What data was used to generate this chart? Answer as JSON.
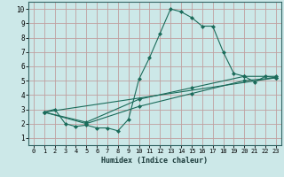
{
  "xlabel": "Humidex (Indice chaleur)",
  "bg_color": "#cce8e8",
  "grid_color": "#c0a0a0",
  "line_color": "#1a6b5a",
  "xlim": [
    -0.5,
    23.5
  ],
  "ylim": [
    0.5,
    10.5
  ],
  "xticks": [
    0,
    1,
    2,
    3,
    4,
    5,
    6,
    7,
    8,
    9,
    10,
    11,
    12,
    13,
    14,
    15,
    16,
    17,
    18,
    19,
    20,
    21,
    22,
    23
  ],
  "yticks": [
    1,
    2,
    3,
    4,
    5,
    6,
    7,
    8,
    9,
    10
  ],
  "line1_x": [
    1,
    2,
    3,
    4,
    5,
    6,
    7,
    8,
    9,
    10,
    11,
    12,
    13,
    14,
    15,
    16,
    17,
    18,
    19,
    20,
    21,
    22,
    23
  ],
  "line1_y": [
    2.8,
    3.0,
    2.0,
    1.8,
    1.9,
    1.7,
    1.7,
    1.5,
    2.3,
    5.1,
    6.6,
    8.3,
    10.0,
    9.8,
    9.4,
    8.8,
    8.8,
    7.0,
    5.5,
    5.3,
    4.9,
    5.3,
    5.2
  ],
  "line2_x": [
    1,
    5,
    10,
    15,
    20,
    23
  ],
  "line2_y": [
    2.8,
    2.1,
    3.7,
    4.5,
    5.3,
    5.3
  ],
  "line3_x": [
    1,
    5,
    10,
    15,
    20,
    23
  ],
  "line3_y": [
    2.8,
    2.0,
    3.2,
    4.1,
    5.0,
    5.2
  ],
  "line4_x": [
    1,
    23
  ],
  "line4_y": [
    2.8,
    5.2
  ]
}
